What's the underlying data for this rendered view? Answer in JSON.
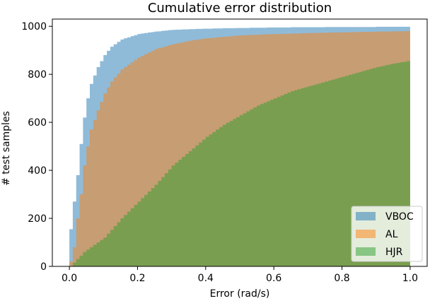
{
  "chart_data": {
    "type": "area",
    "title": "Cumulative error distribution",
    "xlabel": "Error (rad/s)",
    "ylabel": "# test samples",
    "xlim": [
      -0.05,
      1.05
    ],
    "ylim": [
      0,
      1030
    ],
    "xticks": [
      0.0,
      0.2,
      0.4,
      0.6,
      0.8,
      1.0
    ],
    "xtick_labels": [
      "0.0",
      "0.2",
      "0.4",
      "0.6",
      "0.8",
      "1.0"
    ],
    "yticks": [
      0,
      200,
      400,
      600,
      800,
      1000
    ],
    "ytick_labels": [
      "0",
      "200",
      "400",
      "600",
      "800",
      "1000"
    ],
    "grid": false,
    "legend_position": "lower-right",
    "histogram": "step-filled cumulative, alpha 0.5",
    "series": [
      {
        "name": "VBOC",
        "color": "#1f77b4",
        "x": [
          0.0,
          0.01,
          0.02,
          0.03,
          0.04,
          0.05,
          0.06,
          0.08,
          0.1,
          0.12,
          0.15,
          0.2,
          0.25,
          0.3,
          0.4,
          0.5,
          0.6,
          0.8,
          1.0
        ],
        "y": [
          155,
          270,
          380,
          510,
          620,
          700,
          760,
          830,
          880,
          915,
          945,
          968,
          978,
          985,
          990,
          993,
          995,
          997,
          998
        ]
      },
      {
        "name": "AL",
        "color": "#ff7f0e",
        "x": [
          0.0,
          0.01,
          0.02,
          0.03,
          0.04,
          0.05,
          0.06,
          0.08,
          0.1,
          0.12,
          0.15,
          0.2,
          0.25,
          0.3,
          0.35,
          0.4,
          0.5,
          0.6,
          0.8,
          1.0
        ],
        "y": [
          20,
          80,
          200,
          300,
          420,
          500,
          570,
          650,
          720,
          770,
          820,
          870,
          905,
          925,
          940,
          950,
          962,
          968,
          975,
          980
        ]
      },
      {
        "name": "HJR",
        "color": "#2ca02c",
        "x": [
          0.0,
          0.02,
          0.04,
          0.06,
          0.08,
          0.1,
          0.15,
          0.2,
          0.25,
          0.3,
          0.35,
          0.4,
          0.45,
          0.5,
          0.55,
          0.6,
          0.65,
          0.7,
          0.75,
          0.8,
          0.85,
          0.9,
          0.95,
          1.0
        ],
        "y": [
          0,
          30,
          60,
          80,
          100,
          120,
          200,
          270,
          340,
          420,
          480,
          540,
          590,
          630,
          670,
          700,
          730,
          750,
          770,
          790,
          810,
          830,
          845,
          857
        ]
      }
    ]
  }
}
